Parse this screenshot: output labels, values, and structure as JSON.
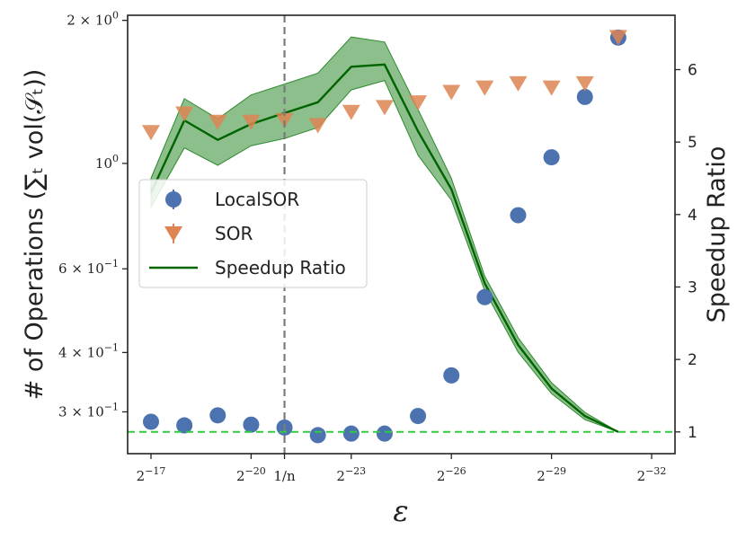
{
  "chart_data": {
    "type": "scatter",
    "xlabel": "ε",
    "ylabel_left": "# of Operations (∑ₜ vol(𝒮ₜ))",
    "ylabel_right": "Speedup Ratio",
    "x_ticks": [
      {
        "x": 0,
        "base": "2",
        "exp": "−17"
      },
      {
        "x": 3,
        "base": "2",
        "exp": "−20"
      },
      {
        "x": 4,
        "base": "1/n",
        "exp": ""
      },
      {
        "x": 6,
        "base": "2",
        "exp": "−23"
      },
      {
        "x": 9,
        "base": "2",
        "exp": "−26"
      },
      {
        "x": 12,
        "base": "2",
        "exp": "−29"
      },
      {
        "x": 15,
        "base": "2",
        "exp": "−32"
      }
    ],
    "y_left_ticks": [
      {
        "v": 2.0,
        "mant": "2 × 10",
        "exp": "0"
      },
      {
        "v": 1.0,
        "mant": "10",
        "exp": "0"
      },
      {
        "v": 0.6,
        "mant": "6 × 10",
        "exp": "−1"
      },
      {
        "v": 0.4,
        "mant": "4 × 10",
        "exp": "−1"
      },
      {
        "v": 0.3,
        "mant": "3 × 10",
        "exp": "−1"
      }
    ],
    "y_left_range": [
      0.245,
      2.05
    ],
    "y_right_ticks": [
      1,
      2,
      3,
      4,
      5,
      6
    ],
    "y_right_range": [
      0.7,
      6.75
    ],
    "vertical_line_x": 4,
    "horizontal_line_right": 1,
    "legend": {
      "position": "center-left",
      "entries": [
        {
          "label": "LocalSOR",
          "marker": "circle",
          "color": "#4c72b0"
        },
        {
          "label": "SOR",
          "marker": "triangle-down",
          "color": "#dd8452"
        },
        {
          "label": "Speedup Ratio",
          "marker": "line",
          "color": "#006400"
        }
      ]
    },
    "series": [
      {
        "name": "LocalSOR",
        "axis": "left",
        "color": "#4c72b0",
        "x": [
          0,
          1,
          2,
          3,
          4,
          5,
          6,
          7,
          8,
          9,
          10,
          11,
          12,
          13,
          14
        ],
        "values": [
          0.286,
          0.281,
          0.295,
          0.282,
          0.278,
          0.268,
          0.27,
          0.27,
          0.294,
          0.358,
          0.523,
          0.778,
          1.03,
          1.38,
          1.84
        ]
      },
      {
        "name": "SOR",
        "axis": "left",
        "color": "#dd8452",
        "x": [
          0,
          1,
          2,
          3,
          4,
          5,
          6,
          7,
          8,
          9,
          10,
          11,
          12,
          13,
          14
        ],
        "values": [
          1.16,
          1.27,
          1.22,
          1.22,
          1.23,
          1.2,
          1.28,
          1.31,
          1.34,
          1.41,
          1.44,
          1.47,
          1.44,
          1.47,
          1.84
        ]
      },
      {
        "name": "Speedup Ratio",
        "axis": "right",
        "color": "#006400",
        "x": [
          0,
          1,
          2,
          3,
          4,
          5,
          6,
          7,
          8,
          9,
          10,
          11,
          12,
          13,
          14
        ],
        "values": [
          4.3,
          5.3,
          5.03,
          5.25,
          5.4,
          5.55,
          6.04,
          6.07,
          5.15,
          4.35,
          3.05,
          2.2,
          1.6,
          1.22,
          1.0
        ],
        "band_upper": [
          4.5,
          5.6,
          5.32,
          5.65,
          5.8,
          5.95,
          6.45,
          6.38,
          5.45,
          4.5,
          3.15,
          2.3,
          1.68,
          1.27,
          1.0
        ],
        "band_lower": [
          4.1,
          4.92,
          4.68,
          4.95,
          5.05,
          5.2,
          5.72,
          5.85,
          4.82,
          4.2,
          2.95,
          2.1,
          1.53,
          1.17,
          1.0
        ],
        "band_color": "#2e8b2e"
      }
    ]
  }
}
